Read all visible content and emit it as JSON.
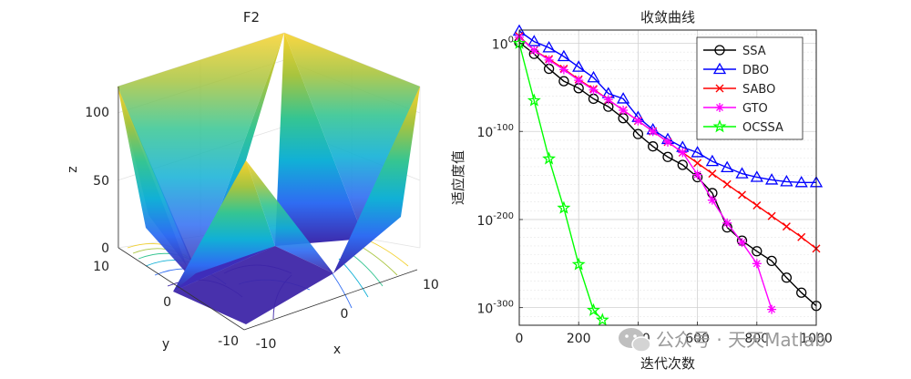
{
  "chart_data": [
    {
      "type": "surface3d",
      "title": "F2",
      "xlabel": "x",
      "ylabel": "y",
      "zlabel": "z",
      "x_ticks": [
        "-10",
        "0",
        "10"
      ],
      "y_ticks": [
        "10",
        "0",
        "-10"
      ],
      "z_ticks": [
        "0",
        "50",
        "100"
      ],
      "x_range": [
        -10,
        10
      ],
      "y_range": [
        -10,
        10
      ],
      "z_range": [
        0,
        120
      ],
      "colormap": [
        "#3e26a8",
        "#2f6cf2",
        "#11b0d6",
        "#35c592",
        "#a7c43f",
        "#f9d22c"
      ]
    },
    {
      "type": "line",
      "title": "收敛曲线",
      "xlabel": "迭代次数",
      "ylabel": "适应度值",
      "xlim": [
        0,
        1000
      ],
      "x_ticks": [
        "0",
        "200",
        "400",
        "600",
        "800",
        "1000"
      ],
      "y_scale": "log",
      "ylim_log10": [
        -320,
        15
      ],
      "y_ticks": [
        {
          "base": "10",
          "exp": "0",
          "log": 0
        },
        {
          "base": "10",
          "exp": "-100",
          "log": -100
        },
        {
          "base": "10",
          "exp": "-200",
          "log": -200
        },
        {
          "base": "10",
          "exp": "-300",
          "log": -300
        }
      ],
      "legend_position": "top-right",
      "series": [
        {
          "name": "SSA",
          "color": "#000000",
          "marker": "circle",
          "x": [
            0,
            50,
            100,
            150,
            200,
            250,
            300,
            350,
            400,
            450,
            500,
            550,
            600,
            650,
            700,
            750,
            800,
            850,
            900,
            950,
            1000
          ],
          "log10_y": [
            1,
            -12,
            -29,
            -43,
            -51,
            -63,
            -72,
            -85,
            -103,
            -117,
            -129,
            -138,
            -152,
            -170,
            -209,
            -224,
            -236,
            -247,
            -266,
            -283,
            -298
          ]
        },
        {
          "name": "DBO",
          "color": "#0000ff",
          "marker": "triangle",
          "x": [
            0,
            50,
            100,
            150,
            200,
            250,
            300,
            350,
            400,
            450,
            500,
            550,
            600,
            650,
            700,
            750,
            800,
            850,
            900,
            950,
            1000
          ],
          "log10_y": [
            14,
            2,
            -5,
            -15,
            -27,
            -39,
            -57,
            -63,
            -84,
            -98,
            -109,
            -118,
            -124,
            -134,
            -141,
            -148,
            -152,
            -155,
            -157,
            -158,
            -158
          ]
        },
        {
          "name": "SABO",
          "color": "#ff0000",
          "marker": "x",
          "x": [
            0,
            50,
            100,
            150,
            200,
            250,
            300,
            350,
            400,
            450,
            500,
            550,
            600,
            650,
            700,
            750,
            800,
            850,
            900,
            950,
            1000
          ],
          "log10_y": [
            8,
            -8,
            -18,
            -29,
            -41,
            -52,
            -64,
            -76,
            -88,
            -100,
            -112,
            -124,
            -136,
            -148,
            -160,
            -172,
            -184,
            -196,
            -208,
            -220,
            -233
          ]
        },
        {
          "name": "GTO",
          "color": "#ff00ff",
          "marker": "asterisk",
          "x": [
            0,
            50,
            100,
            150,
            200,
            250,
            300,
            350,
            400,
            450,
            500,
            550,
            600,
            650,
            700,
            750,
            800,
            850
          ],
          "log10_y": [
            7,
            -8,
            -19,
            -30,
            -42,
            -53,
            -64,
            -76,
            -88,
            -100,
            -112,
            -124,
            -149,
            -178,
            -204,
            -226,
            -250,
            -302
          ]
        },
        {
          "name": "OCSSA",
          "color": "#00ff00",
          "marker": "star",
          "x": [
            0,
            50,
            100,
            150,
            200,
            250,
            280
          ],
          "log10_y": [
            0,
            -65,
            -131,
            -187,
            -251,
            -303,
            -314
          ]
        }
      ]
    }
  ],
  "watermark": {
    "icon": "wechat-icon",
    "text": "公众号 · 天天Matlab"
  }
}
